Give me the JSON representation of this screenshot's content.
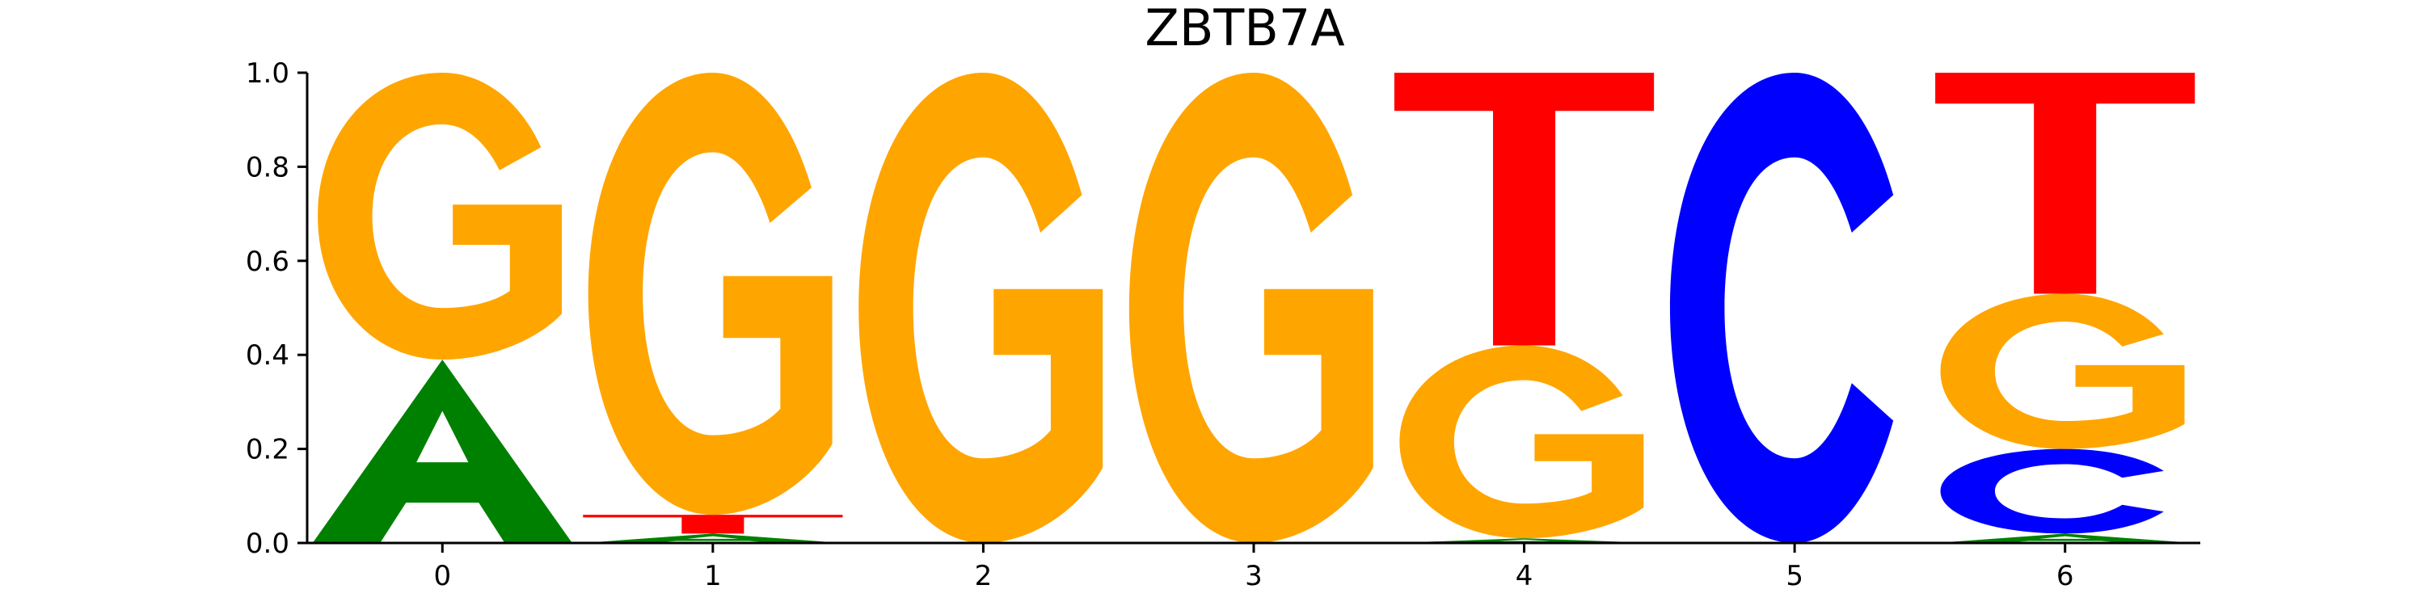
{
  "chart_data": {
    "type": "sequence-logo",
    "title": "ZBTB7A",
    "xlabel": "",
    "ylabel": "",
    "ylim": [
      0,
      1.0
    ],
    "yticks": [
      "0.0",
      "0.2",
      "0.4",
      "0.6",
      "0.8",
      "1.0"
    ],
    "xticks": [
      "0",
      "1",
      "2",
      "3",
      "4",
      "5",
      "6"
    ],
    "colors": {
      "A": "#008000",
      "C": "#0000ff",
      "G": "#ffa500",
      "T": "#ff0000"
    },
    "positions": [
      {
        "x": 0,
        "letters": [
          {
            "base": "A",
            "value": 0.39
          },
          {
            "base": "G",
            "value": 0.61
          }
        ]
      },
      {
        "x": 1,
        "letters": [
          {
            "base": "A",
            "value": 0.02
          },
          {
            "base": "C",
            "value": 0.0
          },
          {
            "base": "T",
            "value": 0.04
          },
          {
            "base": "G",
            "value": 0.94
          }
        ]
      },
      {
        "x": 2,
        "letters": [
          {
            "base": "G",
            "value": 1.0
          }
        ]
      },
      {
        "x": 3,
        "letters": [
          {
            "base": "G",
            "value": 1.0
          }
        ]
      },
      {
        "x": 4,
        "letters": [
          {
            "base": "A",
            "value": 0.01
          },
          {
            "base": "G",
            "value": 0.41
          },
          {
            "base": "T",
            "value": 0.58
          }
        ]
      },
      {
        "x": 5,
        "letters": [
          {
            "base": "C",
            "value": 1.0
          }
        ]
      },
      {
        "x": 6,
        "letters": [
          {
            "base": "A",
            "value": 0.02
          },
          {
            "base": "C",
            "value": 0.18
          },
          {
            "base": "G",
            "value": 0.33
          },
          {
            "base": "T",
            "value": 0.47
          }
        ]
      }
    ]
  }
}
